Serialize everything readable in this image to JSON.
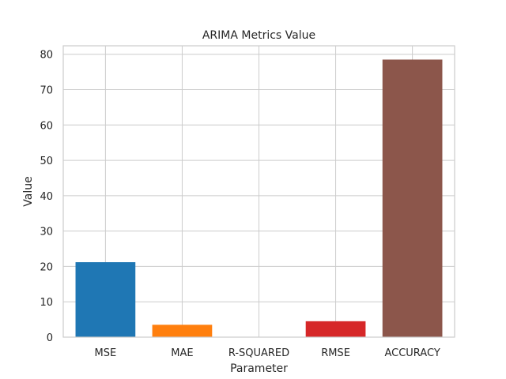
{
  "chart_data": {
    "type": "bar",
    "title": "ARIMA Metrics Value",
    "xlabel": "Parameter",
    "ylabel": "Value",
    "categories": [
      "MSE",
      "MAE",
      "R-SQUARED",
      "RMSE",
      "ACCURACY"
    ],
    "values": [
      21.2,
      3.5,
      0.1,
      4.5,
      78.5
    ],
    "colors": [
      "#1f77b4",
      "#ff7f0e",
      "#2ca02c",
      "#d62728",
      "#8c564b"
    ],
    "ylim": [
      0,
      82.4
    ],
    "yticks": [
      0,
      10,
      20,
      30,
      40,
      50,
      60,
      70,
      80
    ],
    "grid": true,
    "legend": "none"
  }
}
